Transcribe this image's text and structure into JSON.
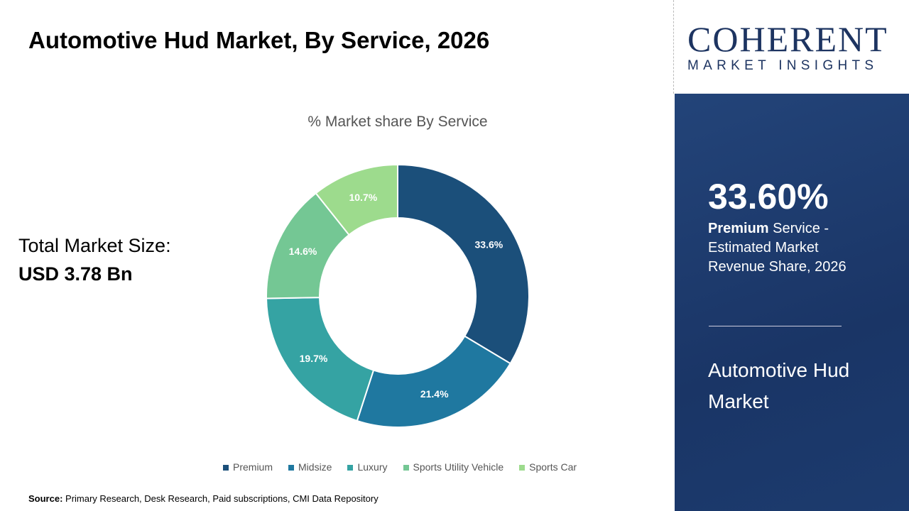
{
  "title": "Automotive Hud Market, By Service, 2026",
  "logo": {
    "line1": "COHERENT",
    "line2": "MARKET INSIGHTS"
  },
  "total": {
    "label": "Total Market Size:",
    "value": "USD 3.78 Bn"
  },
  "panel": {
    "percent": "33.60%",
    "bold": "Premium",
    "desc": " Service - Estimated Market Revenue Share, 2026",
    "market": "Automotive Hud Market"
  },
  "source": {
    "label": "Source:",
    "text": " Primary Research, Desk Research, Paid subscriptions, CMI Data Repository"
  },
  "chart_data": {
    "type": "pie",
    "donut": true,
    "title": "% Market share By Service",
    "categories": [
      "Premium",
      "Midsize",
      "Luxury",
      "Sports Utility Vehicle",
      "Sports Car"
    ],
    "values": [
      33.6,
      21.4,
      19.7,
      14.6,
      10.7
    ],
    "labels": [
      "33.6%",
      "21.4%",
      "19.7%",
      "14.6%",
      "10.7%"
    ],
    "colors": [
      "#1b4f7a",
      "#1f78a0",
      "#35a3a3",
      "#74c794",
      "#9ddb8d"
    ],
    "legend": "bottom"
  }
}
